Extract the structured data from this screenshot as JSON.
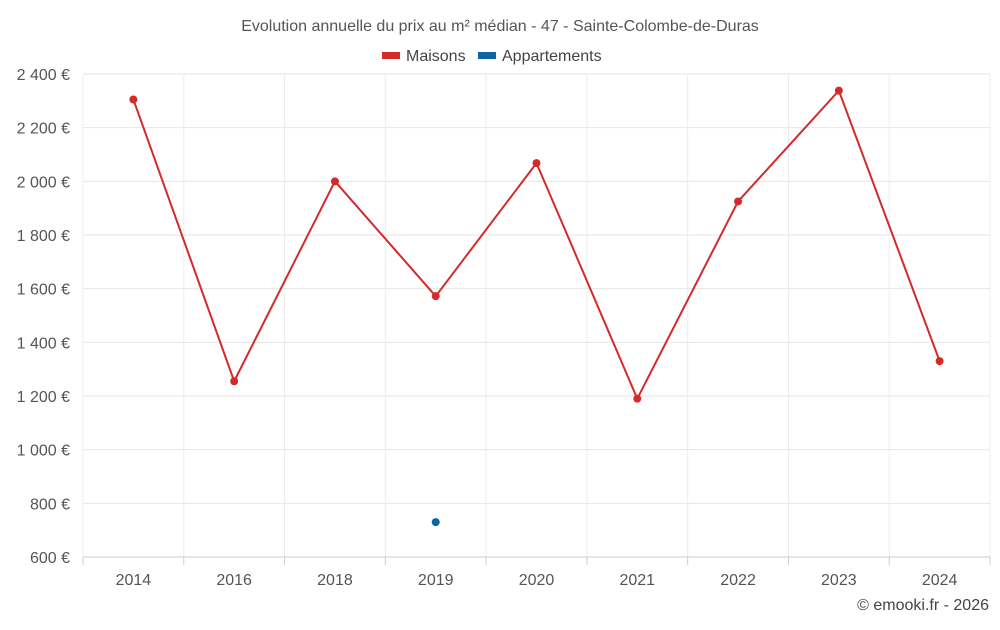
{
  "chart_data": {
    "type": "line",
    "title": "Evolution annuelle du prix au m² médian - 47 - Sainte-Colombe-de-Duras",
    "categories": [
      "2014",
      "2016",
      "2018",
      "2019",
      "2020",
      "2021",
      "2022",
      "2023",
      "2024"
    ],
    "series": [
      {
        "name": "Maisons",
        "color": "#d32a2a",
        "values": [
          2305,
          1255,
          2000,
          1572,
          2068,
          1190,
          1925,
          2338,
          1330
        ]
      },
      {
        "name": "Appartements",
        "color": "#0c64a0",
        "values": [
          null,
          null,
          null,
          730,
          null,
          null,
          null,
          null,
          null
        ]
      }
    ],
    "ylim": [
      600,
      2400
    ],
    "yticks": [
      600,
      800,
      1000,
      1200,
      1400,
      1600,
      1800,
      2000,
      2200,
      2400
    ],
    "ytick_labels": [
      "600 €",
      "800 €",
      "1 000 €",
      "1 200 €",
      "1 400 €",
      "1 600 €",
      "1 800 €",
      "2 000 €",
      "2 200 €",
      "2 400 €"
    ],
    "grid": true,
    "legend": "top-center"
  },
  "credit": "© emooki.fr - 2026"
}
